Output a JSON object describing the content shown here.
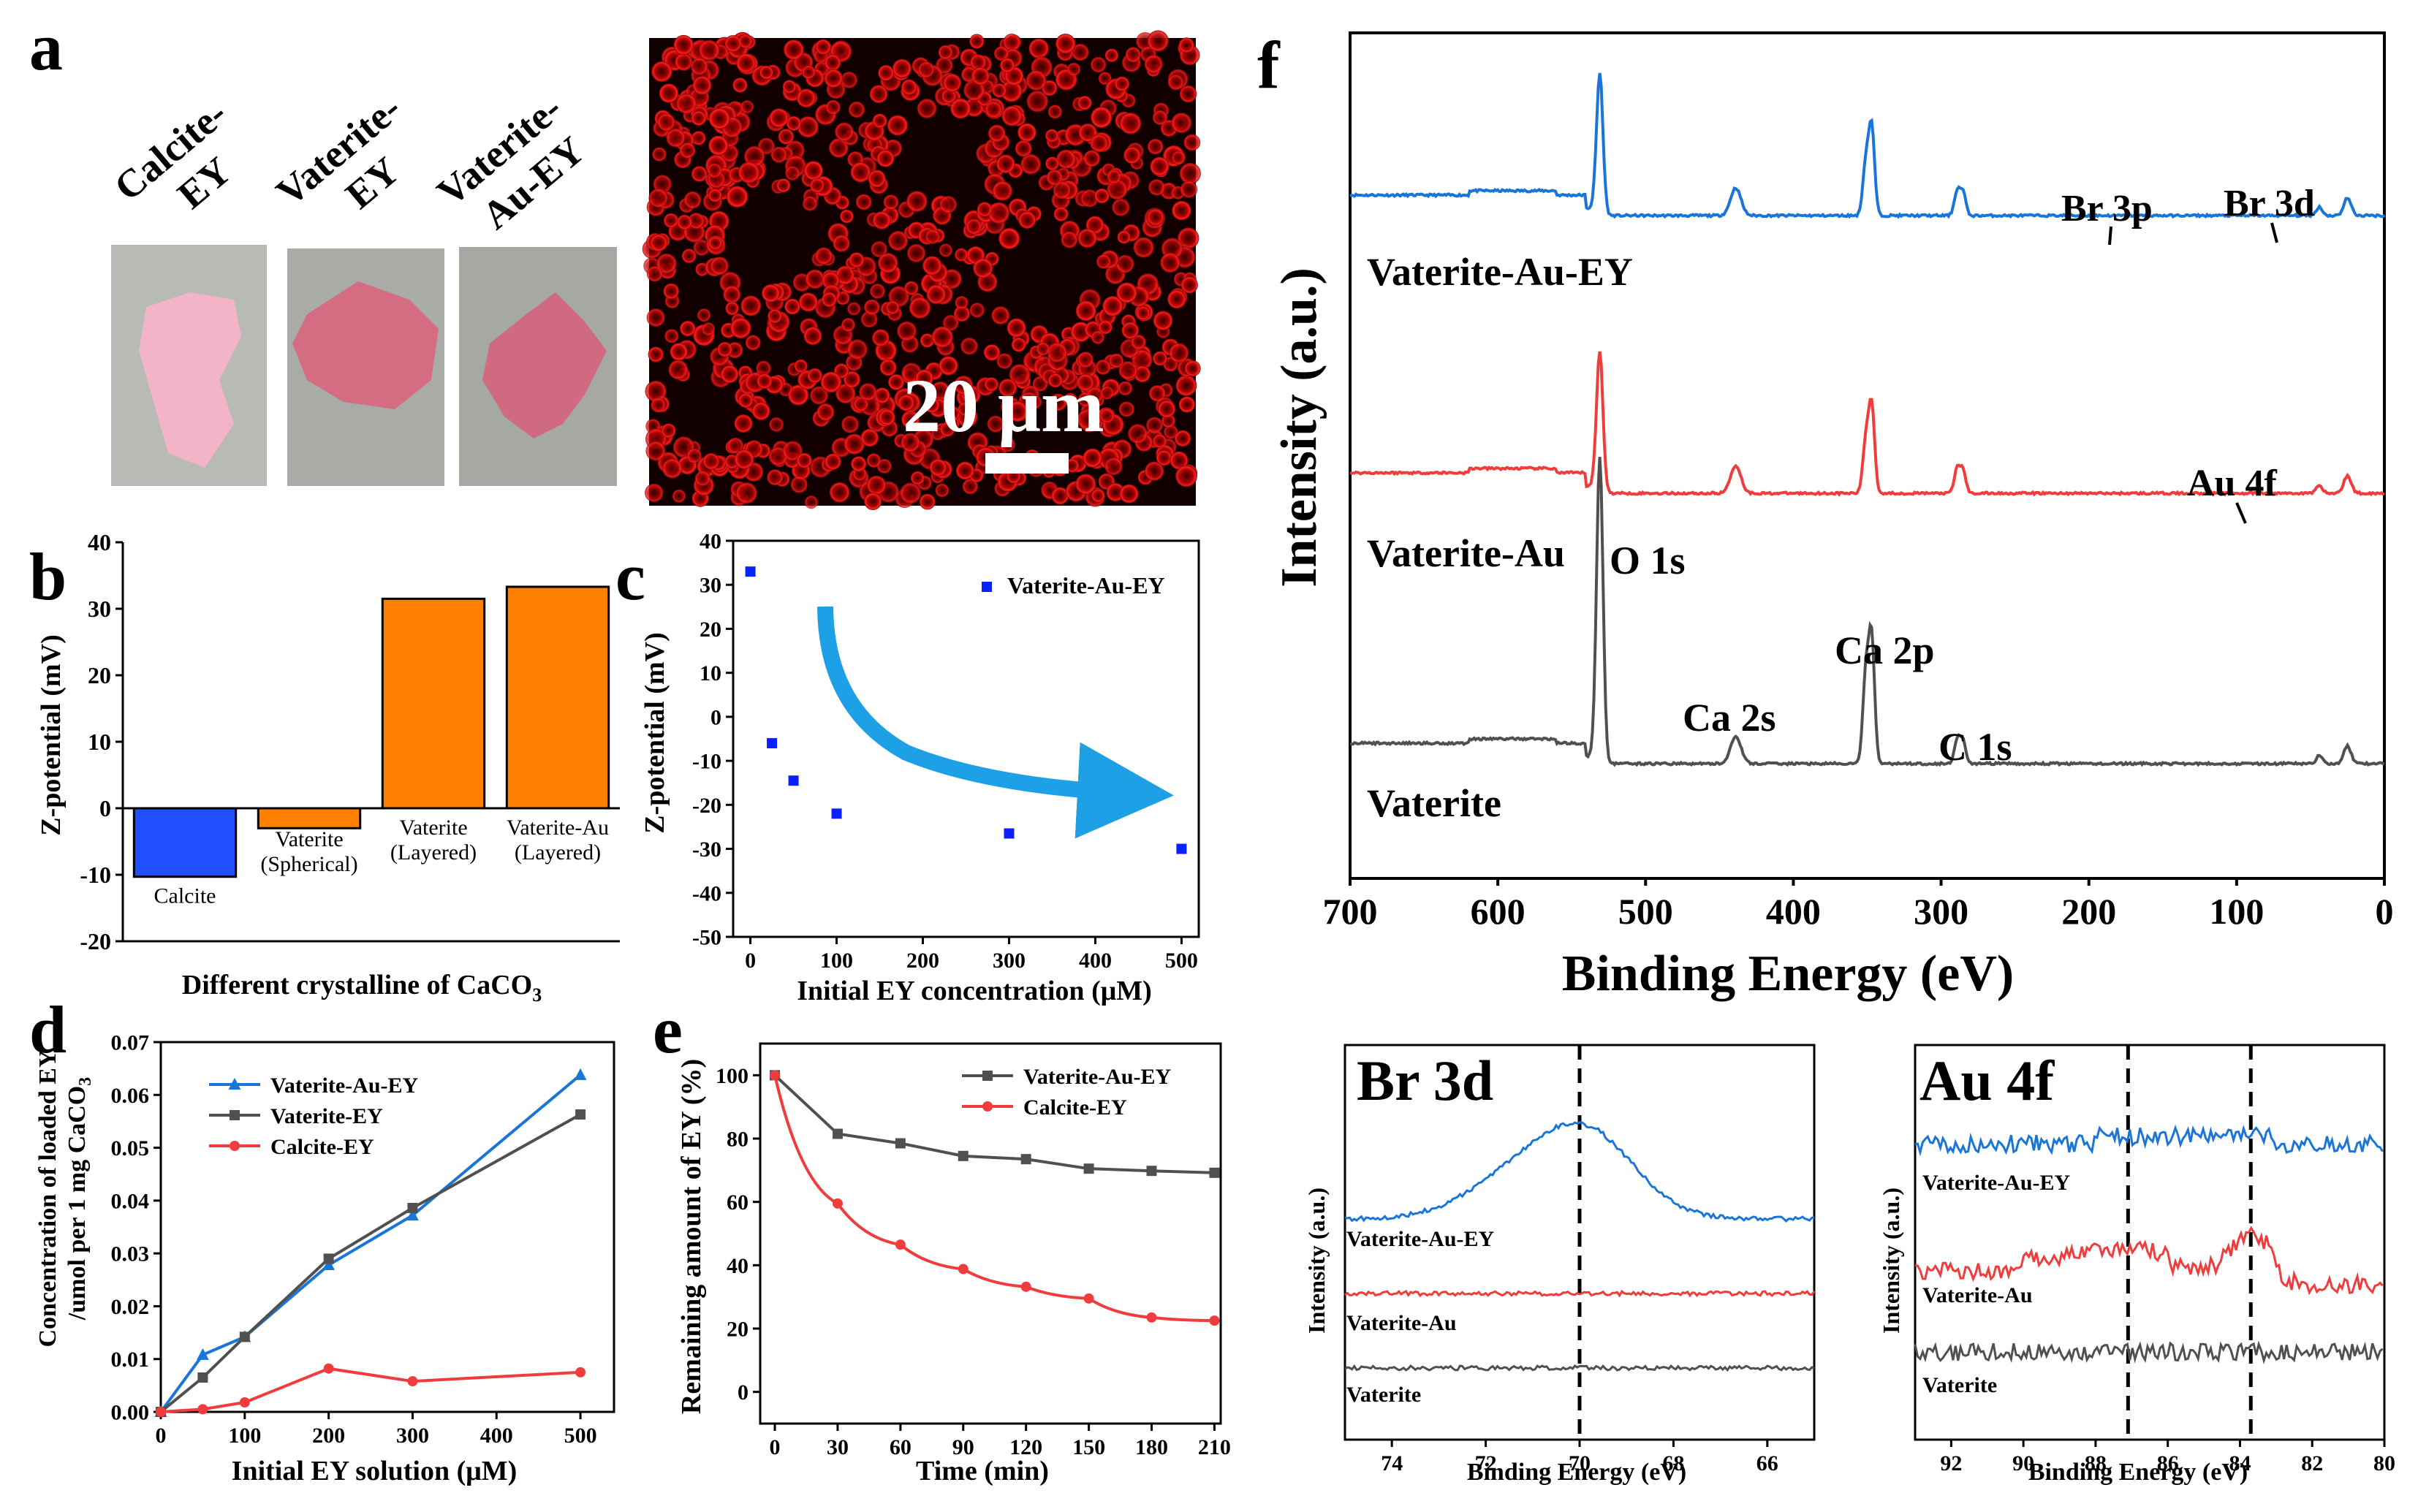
{
  "panel_labels": {
    "a": "a",
    "b": "b",
    "c": "c",
    "d": "d",
    "e": "e",
    "f": "f"
  },
  "colors": {
    "blue": "#1f4fff",
    "orange": "#ff8000",
    "xps_blue": "#1a75d8",
    "xps_red": "#f03c3c",
    "xps_gray": "#505050",
    "ds_blue": "#1a75d8",
    "ds_gray": "#505050",
    "ds_red": "#f03c3c",
    "arrow": "#1ea0e6",
    "micro_red": "#e01010"
  },
  "panel_a": {
    "samples": [
      {
        "line1": "Calcite-",
        "line2": "EY",
        "line3": ""
      },
      {
        "line1": "Vaterite-",
        "line2": "EY",
        "line3": ""
      },
      {
        "line1": "Vaterite-",
        "line2": "Au-EY",
        "line3": ""
      }
    ],
    "scale_bar": "20 μm"
  },
  "chart_data": [
    {
      "id": "b",
      "type": "bar",
      "categories": [
        [
          "Calcite",
          ""
        ],
        [
          "Vaterite",
          "(Spherical)"
        ],
        [
          "Vaterite",
          "(Layered)"
        ],
        [
          "Vaterite-Au",
          "(Layered)"
        ]
      ],
      "values": [
        -10.3,
        -3.0,
        31.5,
        33.3
      ],
      "colors": [
        "#1f4fff",
        "#ff8000",
        "#ff8000",
        "#ff8000"
      ],
      "ylabel": "Z-potential (mV)",
      "xlabel": "Different crystalline of CaCO",
      "xlabel_sub": "3",
      "ylim": [
        -20,
        40
      ],
      "yticks": [
        -20,
        -10,
        0,
        10,
        20,
        30,
        40
      ]
    },
    {
      "id": "c",
      "type": "scatter",
      "series": [
        {
          "name": "Vaterite-Au-EY",
          "x": [
            0,
            25,
            50,
            100,
            300,
            500
          ],
          "y": [
            33,
            -6,
            -14.5,
            -22,
            -26.5,
            -30
          ]
        }
      ],
      "xlabel": "Initial EY concentration (μM)",
      "ylabel": "Z-potential (mV)",
      "xlim": [
        -20,
        520
      ],
      "ylim": [
        -50,
        40
      ],
      "xticks": [
        0,
        100,
        200,
        300,
        400,
        500
      ],
      "yticks": [
        -50,
        -40,
        -30,
        -20,
        -10,
        0,
        10,
        20,
        30,
        40
      ]
    },
    {
      "id": "d",
      "type": "line",
      "series": [
        {
          "name": "Vaterite-Au-EY",
          "marker": "triangle",
          "x": [
            0,
            50,
            100,
            200,
            300,
            500
          ],
          "y": [
            0,
            0.0108,
            0.0142,
            0.0278,
            0.0372,
            0.0638
          ]
        },
        {
          "name": "Vaterite-EY",
          "marker": "square",
          "x": [
            0,
            50,
            100,
            200,
            300,
            500
          ],
          "y": [
            0,
            0.0065,
            0.0142,
            0.029,
            0.0386,
            0.0563
          ]
        },
        {
          "name": "Calcite-EY",
          "marker": "circle",
          "x": [
            0,
            50,
            100,
            200,
            300,
            500
          ],
          "y": [
            0,
            0.0005,
            0.0018,
            0.0082,
            0.0058,
            0.0075
          ]
        }
      ],
      "xlabel": "Initial EY solution (μM)",
      "ylabel_line1": "Concentration of loaded EY",
      "ylabel_line2": "/umol per 1 mg CaCO",
      "ylabel_sub": "3",
      "xlim": [
        0,
        540
      ],
      "ylim": [
        0,
        0.07
      ],
      "xticks": [
        0,
        100,
        200,
        300,
        400,
        500
      ],
      "yticks": [
        0,
        0.01,
        0.02,
        0.03,
        0.04,
        0.05,
        0.06,
        0.07
      ],
      "yticklabels": [
        "0.00",
        "0.01",
        "0.02",
        "0.03",
        "0.04",
        "0.05",
        "0.06",
        "0.07"
      ]
    },
    {
      "id": "e",
      "type": "line",
      "series": [
        {
          "name": "Vaterite-Au-EY",
          "marker": "square",
          "x": [
            0,
            30,
            60,
            90,
            120,
            150,
            180,
            210
          ],
          "y": [
            100,
            81.5,
            78.5,
            74.5,
            73.5,
            70.5,
            69.8,
            69.2
          ]
        },
        {
          "name": "Calcite-EY",
          "marker": "circle",
          "x": [
            0,
            30,
            60,
            90,
            120,
            150,
            180,
            210
          ],
          "y": [
            100,
            59.5,
            46.5,
            38.8,
            33.2,
            29.5,
            23.5,
            22.5
          ]
        }
      ],
      "xlabel": "Time (min)",
      "ylabel": "Remaining amount of EY (%)",
      "xlim": [
        -7,
        213
      ],
      "ylim": [
        -10,
        110
      ],
      "xticks": [
        0,
        30,
        60,
        90,
        120,
        150,
        180,
        210
      ],
      "yticks": [
        0,
        20,
        40,
        60,
        80,
        100
      ]
    },
    {
      "id": "f",
      "type": "line",
      "xlabel": "Binding Energy (eV)",
      "ylabel": "Intensity (a.u.)",
      "xlim": [
        700,
        0
      ],
      "xticks": [
        700,
        600,
        500,
        400,
        300,
        200,
        100,
        0
      ],
      "series": [
        {
          "name": "Vaterite-Au-EY",
          "label": "Vaterite-Au-EY"
        },
        {
          "name": "Vaterite-Au",
          "label": "Vaterite-Au"
        },
        {
          "name": "Vaterite",
          "label": "Vaterite"
        }
      ],
      "annotations": [
        "O 1s",
        "Ca 2s",
        "Ca 2p",
        "C 1s",
        "Br 3p",
        "Br 3d",
        "Au 4f"
      ]
    },
    {
      "id": "f_br3d",
      "type": "line",
      "title": "Br 3d",
      "xlabel": "Binding Energy (eV)",
      "ylabel": "Intensity (a.u.)",
      "xlim": [
        75,
        65
      ],
      "xticks": [
        74,
        72,
        70,
        68,
        66
      ],
      "dashed_at": [
        70
      ],
      "series": [
        {
          "name": "Vaterite-Au-EY"
        },
        {
          "name": "Vaterite-Au"
        },
        {
          "name": "Vaterite"
        }
      ]
    },
    {
      "id": "f_au4f",
      "type": "line",
      "title": "Au 4f",
      "xlabel": "Binding Energy (eV)",
      "ylabel": "Intensity (a.u.)",
      "xlim": [
        93,
        80
      ],
      "xticks": [
        92,
        90,
        88,
        86,
        84,
        82,
        80
      ],
      "dashed_at": [
        87.1,
        83.7
      ],
      "series": [
        {
          "name": "Vaterite-Au-EY"
        },
        {
          "name": "Vaterite-Au"
        },
        {
          "name": "Vaterite"
        }
      ]
    }
  ]
}
